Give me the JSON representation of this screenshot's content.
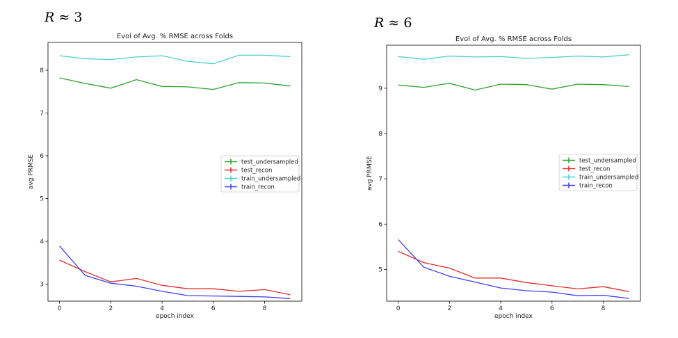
{
  "chart_data": [
    {
      "type": "line",
      "corner_label": {
        "prefix": "R ≈ ",
        "value": "3"
      },
      "title": "Evol of Avg. % RMSE across Folds",
      "xlabel": "epoch index",
      "ylabel": "avg PRMSE",
      "x": [
        0,
        1,
        2,
        3,
        4,
        5,
        6,
        7,
        8,
        9
      ],
      "xlim": [
        -0.45,
        9.45
      ],
      "ylim": [
        2.6,
        8.65
      ],
      "xticks": [
        0,
        2,
        4,
        6,
        8
      ],
      "yticks": [
        3,
        4,
        5,
        6,
        7,
        8
      ],
      "legend_loc": "center right",
      "series": [
        {
          "name": "test_undersampled",
          "color": "#2ca02c",
          "values": [
            7.82,
            7.69,
            7.58,
            7.78,
            7.62,
            7.61,
            7.55,
            7.71,
            7.7,
            7.63
          ]
        },
        {
          "name": "test_recon",
          "color": "#e32b2b",
          "values": [
            3.56,
            3.29,
            3.05,
            3.13,
            2.97,
            2.89,
            2.89,
            2.83,
            2.87,
            2.75
          ]
        },
        {
          "name": "train_undersampled",
          "color": "#48d1cc",
          "values": [
            8.34,
            8.27,
            8.25,
            8.31,
            8.34,
            8.21,
            8.15,
            8.35,
            8.35,
            8.32
          ]
        },
        {
          "name": "train_recon",
          "color": "#3f3ff2",
          "values": [
            3.89,
            3.2,
            3.02,
            2.95,
            2.83,
            2.73,
            2.72,
            2.71,
            2.7,
            2.66
          ]
        }
      ]
    },
    {
      "type": "line",
      "corner_label": {
        "prefix": "R ≈ ",
        "value": "6"
      },
      "title": "Evol of Avg. % RMSE across Folds",
      "xlabel": "epoch index",
      "ylabel": "avg PRMSE",
      "x": [
        0,
        1,
        2,
        3,
        4,
        5,
        6,
        7,
        8,
        9
      ],
      "xlim": [
        -0.45,
        9.45
      ],
      "ylim": [
        4.3,
        9.95
      ],
      "xticks": [
        0,
        2,
        4,
        6,
        8
      ],
      "yticks": [
        5,
        6,
        7,
        8,
        9
      ],
      "legend_loc": "center right",
      "series": [
        {
          "name": "test_undersampled",
          "color": "#2ca02c",
          "values": [
            9.07,
            9.02,
            9.11,
            8.96,
            9.09,
            9.08,
            8.98,
            9.09,
            9.08,
            9.04
          ]
        },
        {
          "name": "test_recon",
          "color": "#e32b2b",
          "values": [
            5.4,
            5.15,
            5.03,
            4.81,
            4.81,
            4.71,
            4.64,
            4.57,
            4.62,
            4.51
          ]
        },
        {
          "name": "train_undersampled",
          "color": "#48d1cc",
          "values": [
            9.7,
            9.64,
            9.71,
            9.69,
            9.7,
            9.66,
            9.68,
            9.71,
            9.69,
            9.74
          ]
        },
        {
          "name": "train_recon",
          "color": "#3f3ff2",
          "values": [
            5.66,
            5.05,
            4.85,
            4.72,
            4.59,
            4.53,
            4.5,
            4.42,
            4.43,
            4.36
          ]
        }
      ]
    }
  ]
}
